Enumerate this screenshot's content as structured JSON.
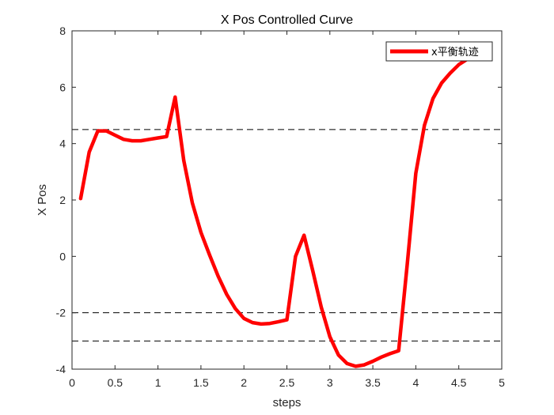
{
  "chart_data": {
    "type": "line",
    "title": "X Pos Controlled Curve",
    "xlabel": "steps",
    "ylabel": "X Pos",
    "xlim": [
      0,
      5
    ],
    "ylim": [
      -4,
      8
    ],
    "xticks": [
      0,
      0.5,
      1,
      1.5,
      2,
      2.5,
      3,
      3.5,
      4,
      4.5,
      5
    ],
    "xtick_labels": [
      "0",
      "0.5",
      "1",
      "1.5",
      "2",
      "2.5",
      "3",
      "3.5",
      "4",
      "4.5",
      "5"
    ],
    "yticks": [
      -4,
      -2,
      0,
      2,
      4,
      6,
      8
    ],
    "ytick_labels": [
      "-4",
      "-2",
      "0",
      "2",
      "4",
      "6",
      "8"
    ],
    "grid": false,
    "legend_position": "top-right",
    "series": [
      {
        "name": "x平衡轨迹",
        "color": "#ff0000",
        "x": [
          0.1,
          0.2,
          0.3,
          0.4,
          0.5,
          0.6,
          0.7,
          0.8,
          0.9,
          1.0,
          1.1,
          1.2,
          1.3,
          1.4,
          1.5,
          1.6,
          1.7,
          1.8,
          1.9,
          2.0,
          2.1,
          2.2,
          2.3,
          2.4,
          2.5,
          2.6,
          2.7,
          2.8,
          2.9,
          3.0,
          3.1,
          3.2,
          3.3,
          3.4,
          3.5,
          3.6,
          3.7,
          3.8,
          3.9,
          4.0,
          4.1,
          4.2,
          4.3,
          4.4,
          4.5,
          4.6,
          4.7
        ],
        "y": [
          2.05,
          3.7,
          4.45,
          4.45,
          4.3,
          4.15,
          4.1,
          4.1,
          4.15,
          4.2,
          4.25,
          5.65,
          3.4,
          1.9,
          0.85,
          0.05,
          -0.7,
          -1.35,
          -1.85,
          -2.2,
          -2.35,
          -2.4,
          -2.38,
          -2.32,
          -2.25,
          0.0,
          0.75,
          -0.5,
          -1.8,
          -2.85,
          -3.5,
          -3.8,
          -3.9,
          -3.85,
          -3.72,
          -3.57,
          -3.45,
          -3.35,
          -0.3,
          2.95,
          4.65,
          5.6,
          6.15,
          6.5,
          6.8,
          7.0,
          7.15
        ]
      }
    ],
    "reference_lines": [
      {
        "y": 8,
        "style": "dashed",
        "color": "#000000"
      },
      {
        "y": 4.5,
        "style": "dashed",
        "color": "#000000"
      },
      {
        "y": -2,
        "style": "dashed",
        "color": "#000000"
      },
      {
        "y": -3,
        "style": "dashed",
        "color": "#000000"
      }
    ]
  }
}
